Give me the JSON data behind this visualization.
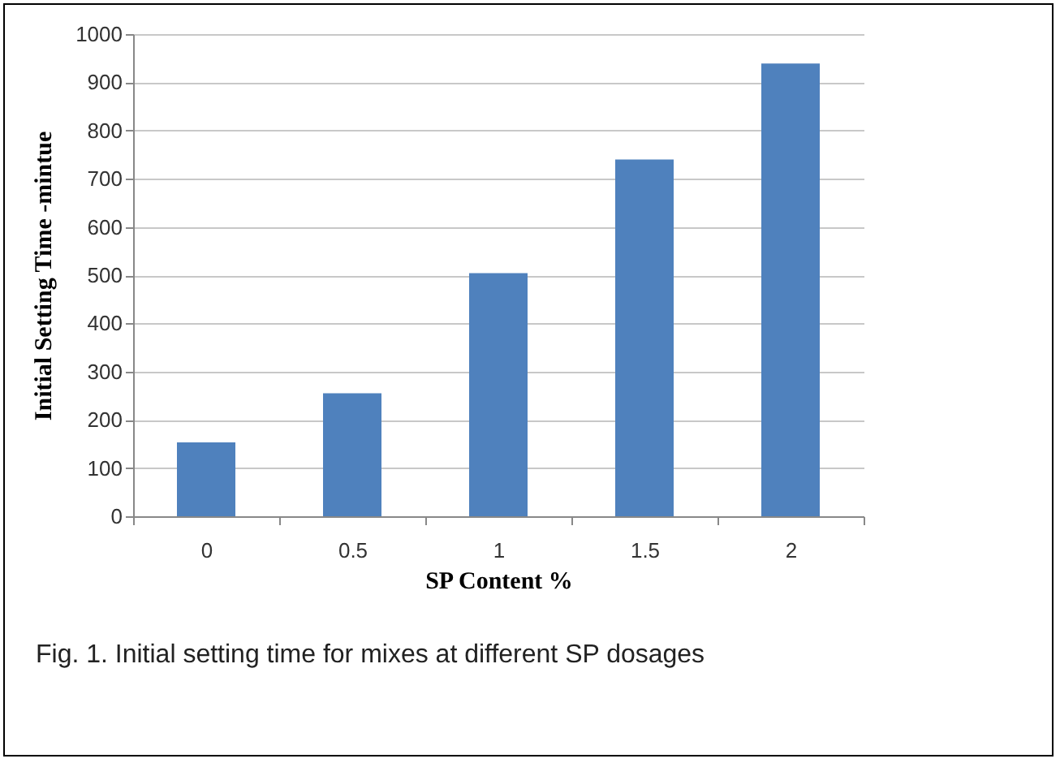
{
  "chart_data": {
    "type": "bar",
    "xlabel": "SP  Content %",
    "ylabel": "Initial Setting Time -mintue",
    "categories": [
      "0",
      "0.5",
      "1",
      "1.5",
      "2"
    ],
    "values": [
      153,
      255,
      504,
      740,
      939
    ],
    "color": "#4f81bd",
    "ylim": [
      0,
      1000
    ],
    "yticks": [
      0,
      100,
      200,
      300,
      400,
      500,
      600,
      700,
      800,
      900,
      1000
    ],
    "grid": "y",
    "annotations": [
      "Fig. 1. Initial setting time for mixes at different SP dosages"
    ]
  }
}
